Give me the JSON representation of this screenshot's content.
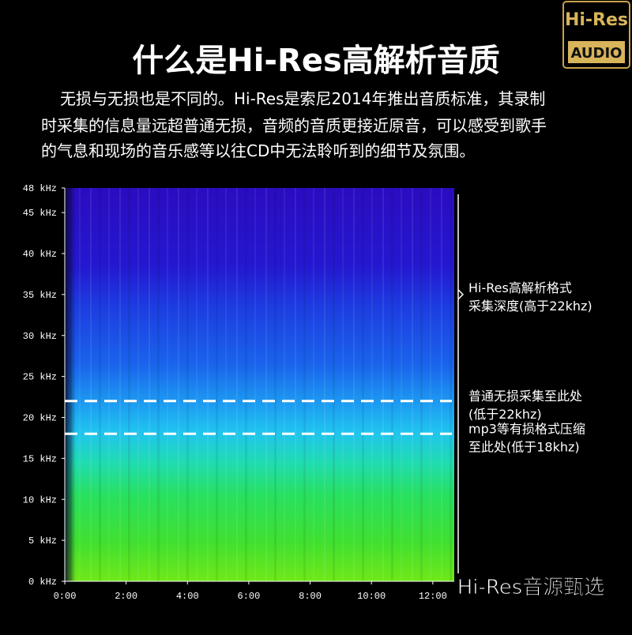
{
  "title": "什么是Hi-Res高解析音质",
  "intro": [
    "无损与无损也是不同的。Hi-Res是索尼2014年推出音质标准，其录制",
    "时采集的信息量远超普通无损，音频的音质更接近原音，可以感受到歌手",
    "的气息和现场的音乐感等以往CD中无法聆听到的细节及氛围。"
  ],
  "logo": {
    "top": "Hi-Res",
    "bottom": "AUDIO"
  },
  "watermark": "Hi-Res音源甄选",
  "chart_data": {
    "type": "spectrogram",
    "xlim": [
      0,
      12.7
    ],
    "ylim": [
      0,
      48
    ],
    "xticks": [
      {
        "value": 0,
        "label": "0:00"
      },
      {
        "value": 2,
        "label": "2:00"
      },
      {
        "value": 4,
        "label": "4:00"
      },
      {
        "value": 6,
        "label": "6:00"
      },
      {
        "value": 8,
        "label": "8:00"
      },
      {
        "value": 10,
        "label": "10:00"
      },
      {
        "value": 12,
        "label": "12:00"
      }
    ],
    "yticks": [
      {
        "value": 0,
        "label": "0 kHz"
      },
      {
        "value": 5,
        "label": "5 kHz"
      },
      {
        "value": 10,
        "label": "10 kHz"
      },
      {
        "value": 15,
        "label": "15 kHz"
      },
      {
        "value": 20,
        "label": "20 kHz"
      },
      {
        "value": 25,
        "label": "25 kHz"
      },
      {
        "value": 30,
        "label": "30 kHz"
      },
      {
        "value": 35,
        "label": "35 kHz"
      },
      {
        "value": 40,
        "label": "40 kHz"
      },
      {
        "value": 45,
        "label": "45 kHz"
      },
      {
        "value": 48,
        "label": "48 kHz"
      }
    ],
    "annotations": [
      {
        "value": 35,
        "lines": [
          "Hi-Res高解析格式",
          "采集深度(高于22khz)"
        ],
        "dashed": false
      },
      {
        "value": 22,
        "lines": [
          "普通无损采集至此处",
          "(低于22khz)"
        ],
        "dashed": true
      },
      {
        "value": 18,
        "lines": [
          "mp3等有损格式压缩",
          "至此处(低于18khz)"
        ],
        "dashed": true
      }
    ]
  }
}
